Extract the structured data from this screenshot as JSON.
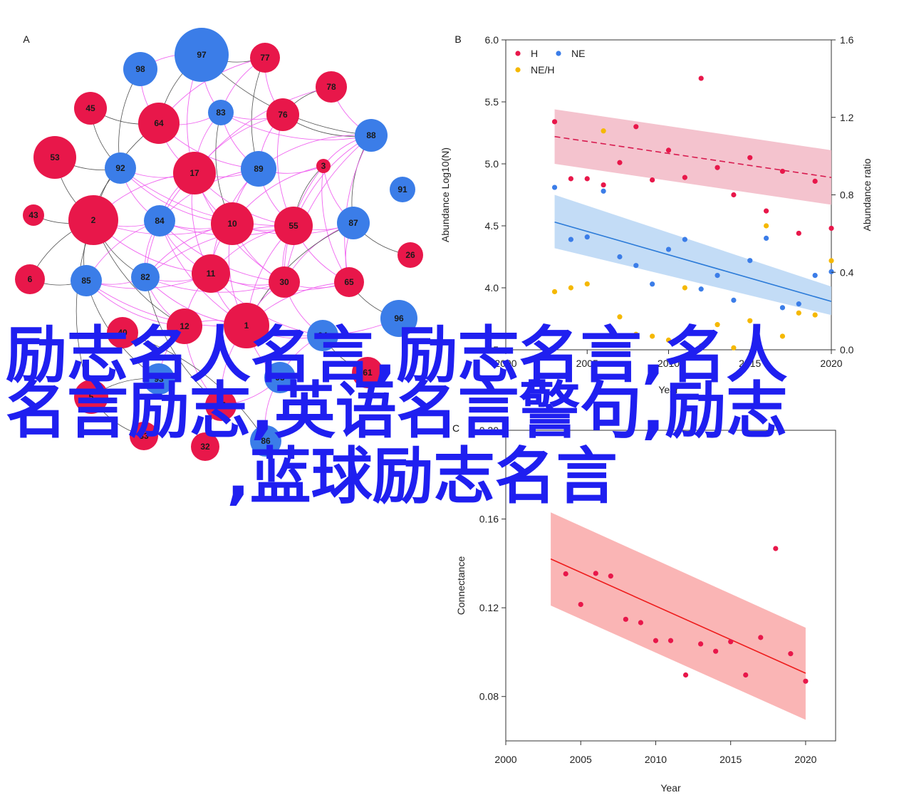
{
  "overlay_title_lines": [
    "励志名人名言,励志名言,名人",
    "名言励志,英语名言警句,励志",
    ",蓝球励志名言"
  ],
  "colors": {
    "red": "#e8174a",
    "blue": "#3b7de8",
    "yellow": "#f5b800",
    "pink_edge": "#ee55ee",
    "dark_edge": "#333333",
    "h_band": "#f2b8c6",
    "ne_band": "#b9d6f5",
    "conn_band": "#f9a8a8",
    "overlay_text": "#1f1ff0"
  },
  "chart_data": [
    {
      "panel": "A",
      "type": "network",
      "nodes": [
        {
          "id": "97",
          "color": "blue",
          "size": "large"
        },
        {
          "id": "77",
          "color": "red",
          "size": "small"
        },
        {
          "id": "98",
          "color": "blue",
          "size": "small"
        },
        {
          "id": "78",
          "color": "red",
          "size": "small"
        },
        {
          "id": "45",
          "color": "red",
          "size": "small"
        },
        {
          "id": "83",
          "color": "blue",
          "size": "tiny"
        },
        {
          "id": "64",
          "color": "red",
          "size": "medium"
        },
        {
          "id": "76",
          "color": "red",
          "size": "small"
        },
        {
          "id": "88",
          "color": "blue",
          "size": "small"
        },
        {
          "id": "53",
          "color": "red",
          "size": "medium"
        },
        {
          "id": "92",
          "color": "blue",
          "size": "small"
        },
        {
          "id": "17",
          "color": "red",
          "size": "medium"
        },
        {
          "id": "89",
          "color": "blue",
          "size": "medium"
        },
        {
          "id": "3",
          "color": "red",
          "size": "tiny"
        },
        {
          "id": "91",
          "color": "blue",
          "size": "tiny"
        },
        {
          "id": "43",
          "color": "red",
          "size": "tiny"
        },
        {
          "id": "2",
          "color": "red",
          "size": "large"
        },
        {
          "id": "84",
          "color": "blue",
          "size": "small"
        },
        {
          "id": "10",
          "color": "red",
          "size": "medium"
        },
        {
          "id": "55",
          "color": "red",
          "size": "medium"
        },
        {
          "id": "87",
          "color": "blue",
          "size": "small"
        },
        {
          "id": "26",
          "color": "red",
          "size": "tiny"
        },
        {
          "id": "6",
          "color": "red",
          "size": "small"
        },
        {
          "id": "85",
          "color": "blue",
          "size": "small"
        },
        {
          "id": "82",
          "color": "blue",
          "size": "small"
        },
        {
          "id": "11",
          "color": "red",
          "size": "medium"
        },
        {
          "id": "30",
          "color": "red",
          "size": "small"
        },
        {
          "id": "65",
          "color": "red",
          "size": "small"
        },
        {
          "id": "96",
          "color": "blue",
          "size": "small"
        },
        {
          "id": "1",
          "color": "red",
          "size": "medium"
        },
        {
          "id": "12",
          "color": "red",
          "size": "small"
        },
        {
          "id": "94",
          "color": "blue",
          "size": "small"
        },
        {
          "id": "93",
          "color": "blue",
          "size": "small"
        },
        {
          "id": "5",
          "color": "red",
          "size": "small"
        },
        {
          "id": "27",
          "color": "red",
          "size": "small"
        },
        {
          "id": "95",
          "color": "blue",
          "size": "small"
        },
        {
          "id": "61",
          "color": "red",
          "size": "small"
        },
        {
          "id": "32",
          "color": "red",
          "size": "small"
        },
        {
          "id": "86",
          "color": "blue",
          "size": "small"
        },
        {
          "id": "40",
          "color": "red",
          "size": "small"
        },
        {
          "id": "33",
          "color": "red",
          "size": "small"
        }
      ],
      "edges": [
        [
          "97",
          "77",
          "dark"
        ],
        [
          "97",
          "98",
          "pink"
        ],
        [
          "97",
          "83",
          "pink"
        ],
        [
          "97",
          "17",
          "pink"
        ],
        [
          "97",
          "88",
          "dark"
        ],
        [
          "97",
          "64",
          "dark"
        ],
        [
          "77",
          "76",
          "pink"
        ],
        [
          "77",
          "89",
          "dark"
        ],
        [
          "77",
          "83",
          "pink"
        ],
        [
          "77",
          "64",
          "pink"
        ],
        [
          "78",
          "76",
          "dark"
        ],
        [
          "78",
          "88",
          "pink"
        ],
        [
          "78",
          "17",
          "pink"
        ],
        [
          "98",
          "64",
          "pink"
        ],
        [
          "98",
          "92",
          "dark"
        ],
        [
          "45",
          "64",
          "dark"
        ],
        [
          "45",
          "92",
          "dark"
        ],
        [
          "64",
          "83",
          "pink"
        ],
        [
          "64",
          "17",
          "pink"
        ],
        [
          "64",
          "89",
          "pink"
        ],
        [
          "64",
          "2",
          "dark"
        ],
        [
          "83",
          "76",
          "pink"
        ],
        [
          "83",
          "89",
          "pink"
        ],
        [
          "83",
          "88",
          "pink"
        ],
        [
          "83",
          "17",
          "pink"
        ],
        [
          "83",
          "10",
          "dark"
        ],
        [
          "76",
          "88",
          "dark"
        ],
        [
          "76",
          "17",
          "pink"
        ],
        [
          "76",
          "89",
          "pink"
        ],
        [
          "76",
          "55",
          "pink"
        ],
        [
          "88",
          "3",
          "pink"
        ],
        [
          "88",
          "55",
          "pink"
        ],
        [
          "88",
          "87",
          "dark"
        ],
        [
          "88",
          "89",
          "pink"
        ],
        [
          "88",
          "30",
          "pink"
        ],
        [
          "88",
          "65",
          "pink"
        ],
        [
          "53",
          "92",
          "dark"
        ],
        [
          "53",
          "2",
          "dark"
        ],
        [
          "92",
          "17",
          "pink"
        ],
        [
          "92",
          "84",
          "pink"
        ],
        [
          "92",
          "2",
          "dark"
        ],
        [
          "92",
          "10",
          "pink"
        ],
        [
          "92",
          "55",
          "pink"
        ],
        [
          "17",
          "89",
          "pink"
        ],
        [
          "17",
          "10",
          "pink"
        ],
        [
          "17",
          "84",
          "pink"
        ],
        [
          "17",
          "55",
          "pink"
        ],
        [
          "17",
          "11",
          "pink"
        ],
        [
          "17",
          "2",
          "pink"
        ],
        [
          "17",
          "82",
          "pink"
        ],
        [
          "17",
          "30",
          "pink"
        ],
        [
          "89",
          "3",
          "pink"
        ],
        [
          "89",
          "10",
          "pink"
        ],
        [
          "89",
          "55",
          "pink"
        ],
        [
          "89",
          "84",
          "pink"
        ],
        [
          "89",
          "11",
          "pink"
        ],
        [
          "3",
          "55",
          "dark"
        ],
        [
          "3",
          "87",
          "pink"
        ],
        [
          "3",
          "10",
          "pink"
        ],
        [
          "3",
          "30",
          "pink"
        ],
        [
          "3",
          "65",
          "pink"
        ],
        [
          "43",
          "2",
          "dark"
        ],
        [
          "2",
          "84",
          "pink"
        ],
        [
          "2",
          "85",
          "dark"
        ],
        [
          "2",
          "82",
          "dark"
        ],
        [
          "2",
          "10",
          "pink"
        ],
        [
          "2",
          "11",
          "pink"
        ],
        [
          "2",
          "12",
          "dark"
        ],
        [
          "2",
          "6",
          "dark"
        ],
        [
          "2",
          "5",
          "dark"
        ],
        [
          "84",
          "10",
          "pink"
        ],
        [
          "84",
          "11",
          "pink"
        ],
        [
          "84",
          "82",
          "pink"
        ],
        [
          "84",
          "85",
          "pink"
        ],
        [
          "84",
          "1",
          "pink"
        ],
        [
          "84",
          "55",
          "pink"
        ],
        [
          "84",
          "30",
          "pink"
        ],
        [
          "10",
          "55",
          "pink"
        ],
        [
          "10",
          "11",
          "pink"
        ],
        [
          "10",
          "82",
          "pink"
        ],
        [
          "10",
          "30",
          "pink"
        ],
        [
          "10",
          "1",
          "pink"
        ],
        [
          "10",
          "87",
          "pink"
        ],
        [
          "55",
          "87",
          "pink"
        ],
        [
          "55",
          "11",
          "pink"
        ],
        [
          "55",
          "30",
          "pink"
        ],
        [
          "55",
          "65",
          "pink"
        ],
        [
          "55",
          "1",
          "pink"
        ],
        [
          "55",
          "82",
          "pink"
        ],
        [
          "87",
          "65",
          "pink"
        ],
        [
          "87",
          "30",
          "pink"
        ],
        [
          "87",
          "26",
          "dark"
        ],
        [
          "87",
          "1",
          "dark"
        ],
        [
          "6",
          "85",
          "dark"
        ],
        [
          "85",
          "82",
          "pink"
        ],
        [
          "85",
          "11",
          "pink"
        ],
        [
          "85",
          "12",
          "pink"
        ],
        [
          "85",
          "93",
          "dark"
        ],
        [
          "85",
          "1",
          "pink"
        ],
        [
          "82",
          "11",
          "pink"
        ],
        [
          "82",
          "12",
          "pink"
        ],
        [
          "82",
          "1",
          "pink"
        ],
        [
          "82",
          "30",
          "pink"
        ],
        [
          "82",
          "27",
          "dark"
        ],
        [
          "11",
          "30",
          "pink"
        ],
        [
          "11",
          "1",
          "pink"
        ],
        [
          "11",
          "12",
          "pink"
        ],
        [
          "11",
          "65",
          "pink"
        ],
        [
          "11",
          "94",
          "pink"
        ],
        [
          "30",
          "65",
          "pink"
        ],
        [
          "30",
          "1",
          "pink"
        ],
        [
          "30",
          "94",
          "pink"
        ],
        [
          "65",
          "96",
          "dark"
        ],
        [
          "65",
          "1",
          "pink"
        ],
        [
          "1",
          "12",
          "pink"
        ],
        [
          "1",
          "94",
          "pink"
        ],
        [
          "1",
          "96",
          "pink"
        ],
        [
          "1",
          "95",
          "pink"
        ],
        [
          "1",
          "27",
          "pink"
        ],
        [
          "12",
          "93",
          "pink"
        ],
        [
          "12",
          "27",
          "pink"
        ],
        [
          "94",
          "61",
          "dark"
        ],
        [
          "94",
          "95",
          "pink"
        ],
        [
          "93",
          "5",
          "dark"
        ],
        [
          "27",
          "95",
          "pink"
        ],
        [
          "27",
          "32",
          "dark"
        ],
        [
          "95",
          "86",
          "pink"
        ],
        [
          "86",
          "40",
          "dark"
        ],
        [
          "5",
          "33",
          "dark"
        ]
      ]
    },
    {
      "panel": "B",
      "type": "scatter",
      "xlabel": "Year",
      "ylabel": "Abundance Log10(N)",
      "y2label": "Abundance ratio",
      "xlim": [
        2000,
        2020
      ],
      "ylim": [
        3.5,
        6.0
      ],
      "y2lim": [
        0.0,
        1.6
      ],
      "xticks": [
        2000,
        2005,
        2010,
        2015,
        2020
      ],
      "yticks": [
        "3.5",
        "4.0",
        "4.5",
        "5.0",
        "5.5",
        "6.0"
      ],
      "y2ticks": [
        "0.0",
        "0.4",
        "0.8",
        "1.2",
        "1.6"
      ],
      "legend_position": "top-left",
      "series": [
        {
          "name": "H",
          "color": "red",
          "axis": "left",
          "x": [
            2003,
            2004,
            2005,
            2006,
            2007,
            2008,
            2009,
            2010,
            2011,
            2012,
            2013,
            2014,
            2015,
            2016,
            2017,
            2018,
            2019,
            2020
          ],
          "y": [
            5.34,
            4.88,
            4.88,
            4.83,
            5.01,
            5.3,
            4.87,
            5.11,
            4.89,
            5.69,
            4.97,
            4.75,
            5.05,
            4.62,
            4.94,
            4.44,
            4.86,
            4.48
          ],
          "fit": [
            5.22,
            4.89
          ],
          "ci_upper": [
            5.44,
            5.11
          ],
          "ci_lower": [
            5.0,
            4.67
          ]
        },
        {
          "name": "NE",
          "color": "blue",
          "axis": "left",
          "x": [
            2003,
            2004,
            2005,
            2006,
            2007,
            2008,
            2009,
            2010,
            2011,
            2012,
            2013,
            2014,
            2015,
            2016,
            2017,
            2018,
            2019,
            2020
          ],
          "y": [
            4.81,
            4.39,
            4.41,
            4.78,
            4.25,
            4.18,
            4.03,
            4.31,
            4.39,
            3.99,
            4.1,
            3.9,
            4.22,
            4.4,
            3.84,
            3.87,
            4.1,
            4.13
          ],
          "fit": [
            4.53,
            3.89
          ],
          "ci_upper": [
            4.75,
            4.01
          ],
          "ci_lower": [
            4.32,
            3.78
          ]
        },
        {
          "name": "NE/H",
          "color": "yellow",
          "axis": "right",
          "x": [
            2003,
            2004,
            2005,
            2006,
            2007,
            2008,
            2009,
            2010,
            2011,
            2012,
            2013,
            2014,
            2015,
            2016,
            2017,
            2018,
            2019,
            2020
          ],
          "y": [
            0.3,
            0.32,
            0.34,
            1.13,
            0.17,
            0.08,
            0.07,
            0.05,
            0.32,
            0.02,
            0.13,
            0.01,
            0.15,
            0.64,
            0.07,
            0.19,
            0.18,
            0.46
          ]
        }
      ]
    },
    {
      "panel": "C",
      "type": "scatter",
      "xlabel": "Year",
      "ylabel": "Connectance",
      "xlim": [
        2000,
        2022
      ],
      "ylim": [
        0.06,
        0.2
      ],
      "xticks": [
        2000,
        2005,
        2010,
        2015,
        2020
      ],
      "yticks": [
        "0.08",
        "0.12",
        "0.16",
        "0.20"
      ],
      "series": [
        {
          "name": "",
          "color": "red",
          "x": [
            2004,
            2005,
            2006,
            2007,
            2008,
            2009,
            2010,
            2011,
            2012,
            2013,
            2014,
            2015,
            2016,
            2017,
            2018,
            2019,
            2020
          ],
          "y": [
            0.1353,
            0.1215,
            0.1355,
            0.1343,
            0.1148,
            0.1133,
            0.1052,
            0.1052,
            0.0897,
            0.1037,
            0.1004,
            0.1047,
            0.0897,
            0.1066,
            0.1467,
            0.0993,
            0.0869
          ],
          "fit_x": [
            2003,
            2020
          ],
          "fit": [
            0.142,
            0.0905
          ],
          "ci_upper": [
            0.163,
            0.111
          ],
          "ci_lower": [
            0.121,
            0.0695
          ]
        }
      ]
    }
  ]
}
